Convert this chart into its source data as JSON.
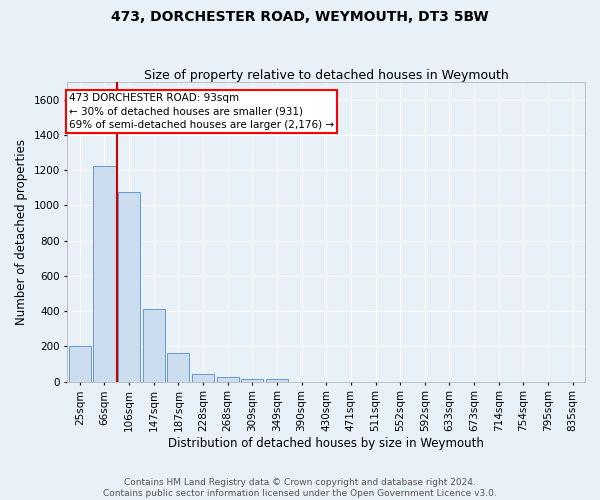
{
  "title": "473, DORCHESTER ROAD, WEYMOUTH, DT3 5BW",
  "subtitle": "Size of property relative to detached houses in Weymouth",
  "xlabel": "Distribution of detached houses by size in Weymouth",
  "ylabel": "Number of detached properties",
  "bar_color": "#ccddf0",
  "bar_edge_color": "#6699cc",
  "categories": [
    "25sqm",
    "66sqm",
    "106sqm",
    "147sqm",
    "187sqm",
    "228sqm",
    "268sqm",
    "309sqm",
    "349sqm",
    "390sqm",
    "430sqm",
    "471sqm",
    "511sqm",
    "552sqm",
    "592sqm",
    "633sqm",
    "673sqm",
    "714sqm",
    "754sqm",
    "795sqm",
    "835sqm"
  ],
  "values": [
    203,
    1225,
    1075,
    410,
    160,
    45,
    26,
    15,
    14,
    0,
    0,
    0,
    0,
    0,
    0,
    0,
    0,
    0,
    0,
    0,
    0
  ],
  "ylim": [
    0,
    1700
  ],
  "yticks": [
    0,
    200,
    400,
    600,
    800,
    1000,
    1200,
    1400,
    1600
  ],
  "annotation_text_line1": "473 DORCHESTER ROAD: 93sqm",
  "annotation_text_line2": "← 30% of detached houses are smaller (931)",
  "annotation_text_line3": "69% of semi-detached houses are larger (2,176) →",
  "vline_x": 1.5,
  "vline_color": "#cc0000",
  "footer_line1": "Contains HM Land Registry data © Crown copyright and database right 2024.",
  "footer_line2": "Contains public sector information licensed under the Open Government Licence v3.0.",
  "background_color": "#e8f0f8",
  "plot_bg_color": "#e8f0f8",
  "grid_color": "#ffffff",
  "title_fontsize": 10,
  "subtitle_fontsize": 9,
  "axis_label_fontsize": 8.5,
  "tick_fontsize": 7.5,
  "annotation_fontsize": 7.5,
  "footer_fontsize": 6.5
}
